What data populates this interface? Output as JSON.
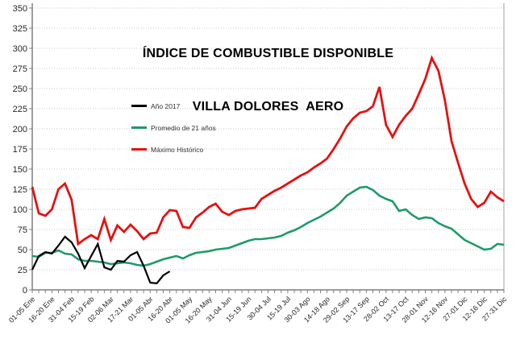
{
  "title": {
    "line1": "ÍNDICE DE COMBUSTIBLE DISPONIBLE",
    "line2": "VILLA DOLORES  AERO"
  },
  "legend": {
    "position": "inside upper-left",
    "items": [
      {
        "label": "Año 2017",
        "color": "#000000"
      },
      {
        "label": "Promedio de 21 años",
        "color": "#1f9a6a"
      },
      {
        "label": "Máximo Histórico",
        "color": "#e8100f"
      }
    ]
  },
  "chart_data": {
    "type": "line",
    "title": "ÍNDICE DE COMBUSTIBLE DISPONIBLE VILLA DOLORES AERO",
    "xlabel": "",
    "ylabel": "",
    "ylim": [
      0,
      350
    ],
    "y_tick_step": 25,
    "n_points": 73,
    "label_every_n_points": 3,
    "grid": "horizontal dotted",
    "legend_position": "inside upper-left",
    "x_tick_labels": [
      "01-05 Ene",
      "16-20 Ene",
      "31-04 Feb",
      "15-19 Feb",
      "02-06 Mar",
      "17-21 Mar",
      "01-05 Abr",
      "16-20 Abr",
      "01-05 May",
      "16-20 May",
      "31-04 Jun",
      "15-19 Jun",
      "30-04 Jul",
      "15-19 Jul",
      "30-03 Ago",
      "14-18 Ago",
      "29-02 Sep",
      "13-17 Sep",
      "28-02 Oct",
      "13-17 Oct",
      "28-01 Nov",
      "12-16 Nov",
      "27-01 Dic",
      "12-16 Dic",
      "27-31 Dic"
    ],
    "series": [
      {
        "name": "Año 2017",
        "color": "#000000",
        "stroke_width": 2.2,
        "values": [
          25,
          42,
          47,
          45,
          55,
          66,
          59,
          45,
          27,
          42,
          57,
          28,
          25,
          36,
          35,
          43,
          47,
          30,
          9,
          8,
          18,
          23
        ]
      },
      {
        "name": "Promedio de 21 años",
        "color": "#1f9a6a",
        "stroke_width": 2.6,
        "values": [
          42,
          41,
          46,
          46,
          49,
          45,
          44,
          38,
          36,
          36,
          35,
          34,
          32,
          33,
          34,
          33,
          31,
          30,
          32,
          35,
          38,
          40,
          42,
          39,
          43,
          46,
          47,
          48,
          50,
          51,
          52,
          55,
          58,
          61,
          63,
          63,
          64,
          65,
          67,
          71,
          74,
          78,
          83,
          87,
          91,
          96,
          101,
          108,
          117,
          122,
          127,
          128,
          124,
          117,
          113,
          110,
          98,
          100,
          93,
          88,
          90,
          89,
          83,
          79,
          76,
          69,
          62,
          58,
          54,
          50,
          51,
          57,
          56
        ]
      },
      {
        "name": "Máximo Histórico",
        "color": "#e8100f",
        "stroke_width": 2.8,
        "values": [
          128,
          95,
          92,
          100,
          125,
          132,
          112,
          57,
          63,
          68,
          63,
          88,
          62,
          80,
          72,
          81,
          73,
          63,
          70,
          71,
          90,
          99,
          98,
          78,
          77,
          90,
          96,
          103,
          107,
          97,
          93,
          98,
          100,
          101,
          102,
          113,
          118,
          123,
          127,
          132,
          137,
          142,
          146,
          152,
          157,
          163,
          175,
          188,
          203,
          213,
          220,
          222,
          228,
          252,
          205,
          190,
          205,
          216,
          225,
          243,
          262,
          288,
          272,
          235,
          185,
          158,
          132,
          113,
          103,
          108,
          122,
          115,
          110
        ]
      }
    ],
    "colors": {
      "gridline": "#c9c9c9",
      "axis": "#7f7f7f",
      "plot_border_right": "#c0c0c0",
      "tick_label": "#262626"
    }
  }
}
